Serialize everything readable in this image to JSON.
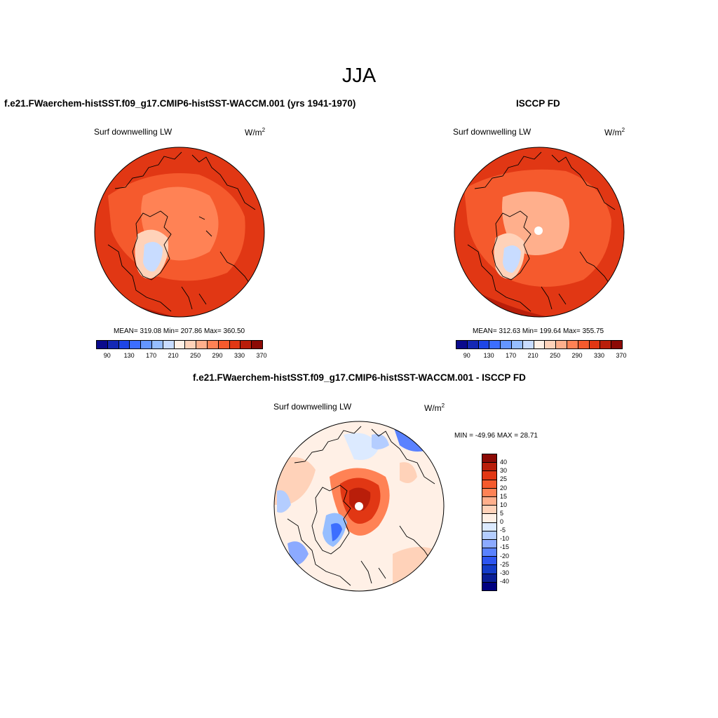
{
  "page_title": "JJA",
  "panels": [
    {
      "title": "f.e21.FWaerchem-histSST.f09_g17.CMIP6-histSST-WACCM.001 (yrs 1941-1970)",
      "variable": "Surf downwelling LW",
      "units_base": "W/m",
      "units_exp": "2",
      "stats": "MEAN= 319.08  Min= 207.86  Max= 360.50",
      "colorbar_ticks": [
        "90",
        "130",
        "170",
        "210",
        "250",
        "290",
        "330",
        "370"
      ],
      "has_missing_pole": false
    },
    {
      "title": "ISCCP FD",
      "variable": "Surf downwelling LW",
      "units_base": "W/m",
      "units_exp": "2",
      "stats": "MEAN= 312.63  Min= 199.64  Max= 355.75",
      "colorbar_ticks": [
        "90",
        "130",
        "170",
        "210",
        "250",
        "290",
        "330",
        "370"
      ],
      "has_missing_pole": true
    }
  ],
  "diff_panel": {
    "title": "f.e21.FWaerchem-histSST.f09_g17.CMIP6-histSST-WACCM.001 - ISCCP FD",
    "variable": "Surf downwelling LW",
    "units_base": "W/m",
    "units_exp": "2",
    "minmax": "MIN = -49.96 MAX =  28.71",
    "colorbar_labels": [
      "40",
      "30",
      "25",
      "20",
      "15",
      "10",
      "5",
      "0",
      "-5",
      "-10",
      "-15",
      "-20",
      "-25",
      "-30",
      "-40"
    ]
  },
  "colors": {
    "abs_scale": [
      "#0a0a8c",
      "#1428b4",
      "#1e46e6",
      "#3c6eff",
      "#6496ff",
      "#96beff",
      "#c8dcff",
      "#fff0e6",
      "#ffd2b9",
      "#ffaf8c",
      "#ff8255",
      "#f55a2d",
      "#e13714",
      "#b91e0a",
      "#8c0a05"
    ],
    "diff_scale": [
      "#8c0a05",
      "#b91e0a",
      "#e13714",
      "#f55a2d",
      "#ff8255",
      "#ffaf8c",
      "#ffd2b9",
      "#fff0e6",
      "#dceaff",
      "#b4cdff",
      "#8caaff",
      "#5a82ff",
      "#2d55f0",
      "#143cc8",
      "#0a1e96",
      "#000080"
    ]
  }
}
